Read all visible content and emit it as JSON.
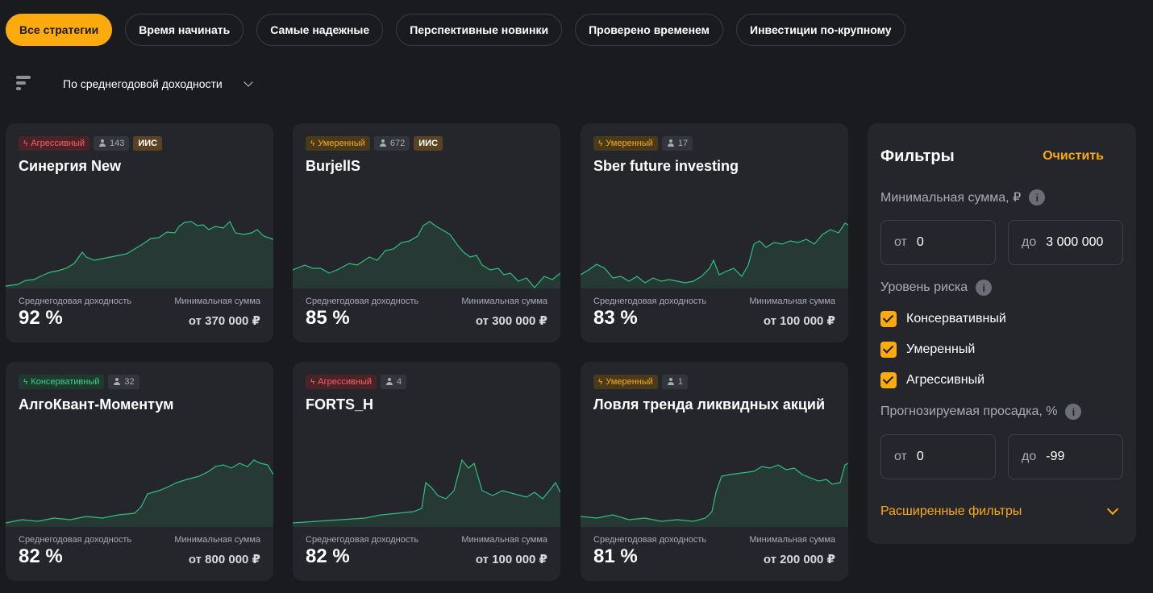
{
  "tabs": [
    "Все стратегии",
    "Время начинать",
    "Самые надежные",
    "Перспективные новинки",
    "Проверено временем",
    "Инвестиции по-крупному"
  ],
  "sort": {
    "label": "По среднегодовой доходности",
    "icon": "sort-icon"
  },
  "stat_labels": {
    "yield": "Среднегодовая доходность",
    "min": "Минимальная сумма"
  },
  "risk_colors": {
    "aggressive": "#ff5f6a",
    "moderate": "#fdaa0f",
    "conservative": "#3fcf8e"
  },
  "strategies": [
    {
      "risk": "Агрессивный",
      "users": "143",
      "iis": "ИИС",
      "title": "Синергия New",
      "yield": "92 %",
      "min": "от 370 000 ₽"
    },
    {
      "risk": "Умеренный",
      "users": "672",
      "iis": "ИИС",
      "title": "BurjellS",
      "yield": "85 %",
      "min": "от 300 000 ₽"
    },
    {
      "risk": "Умеренный",
      "users": "17",
      "title": "Sber future investing",
      "yield": "83 %",
      "min": "от 100 000 ₽"
    },
    {
      "risk": "Консервативный",
      "users": "32",
      "title": "АлгоКвант-Моментум",
      "yield": "82 %",
      "min": "от 800 000 ₽"
    },
    {
      "risk": "Агрессивный",
      "users": "4",
      "title": "FORTS_H",
      "yield": "82 %",
      "min": "от 100 000 ₽"
    },
    {
      "risk": "Умеренный",
      "users": "1",
      "title": "Ловля тренда ликвидных акций",
      "yield": "81 %",
      "min": "от 200 000 ₽"
    }
  ],
  "filters": {
    "title": "Фильтры",
    "clear": "Очистить",
    "min_sum_label": "Минимальная сумма, ₽",
    "from": "от",
    "to": "до",
    "min_sum_from": "0",
    "min_sum_to": "3 000 000",
    "risk_label": "Уровень риска",
    "risk_options": [
      "Консервативный",
      "Умеренный",
      "Агрессивный"
    ],
    "drawdown_label": "Прогнозируемая просадка, %",
    "drawdown_from": "0",
    "drawdown_to": "-99",
    "advanced": "Расширенные фильтры",
    "info_glyph": "i"
  },
  "accent": "#fdaa0f",
  "chart_line_color": "#2ec27e"
}
